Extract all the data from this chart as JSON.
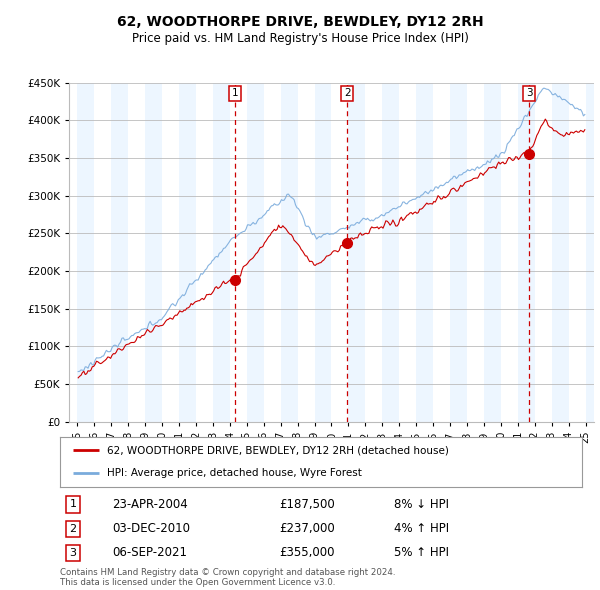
{
  "title": "62, WOODTHORPE DRIVE, BEWDLEY, DY12 2RH",
  "subtitle": "Price paid vs. HM Land Registry's House Price Index (HPI)",
  "ylim": [
    0,
    450000
  ],
  "yticks": [
    0,
    50000,
    100000,
    150000,
    200000,
    250000,
    300000,
    350000,
    400000,
    450000
  ],
  "legend_line1": "62, WOODTHORPE DRIVE, BEWDLEY, DY12 2RH (detached house)",
  "legend_line2": "HPI: Average price, detached house, Wyre Forest",
  "footer": "Contains HM Land Registry data © Crown copyright and database right 2024.\nThis data is licensed under the Open Government Licence v3.0.",
  "transactions": [
    {
      "num": 1,
      "date": "23-APR-2004",
      "price": "£187,500",
      "pct": "8% ↓ HPI",
      "year": 2004.31,
      "price_val": 187500
    },
    {
      "num": 2,
      "date": "03-DEC-2010",
      "price": "£237,000",
      "pct": "4% ↑ HPI",
      "year": 2010.92,
      "price_val": 237000
    },
    {
      "num": 3,
      "date": "06-SEP-2021",
      "price": "£355,000",
      "pct": "5% ↑ HPI",
      "year": 2021.68,
      "price_val": 355000
    }
  ],
  "red_line_color": "#cc0000",
  "blue_line_color": "#7aabdc",
  "alt_bg_color": "#ddeeff",
  "dashed_line_color": "#cc0000",
  "background_color": "#ffffff",
  "grid_color": "#bbbbbb",
  "dot_color": "#cc0000"
}
